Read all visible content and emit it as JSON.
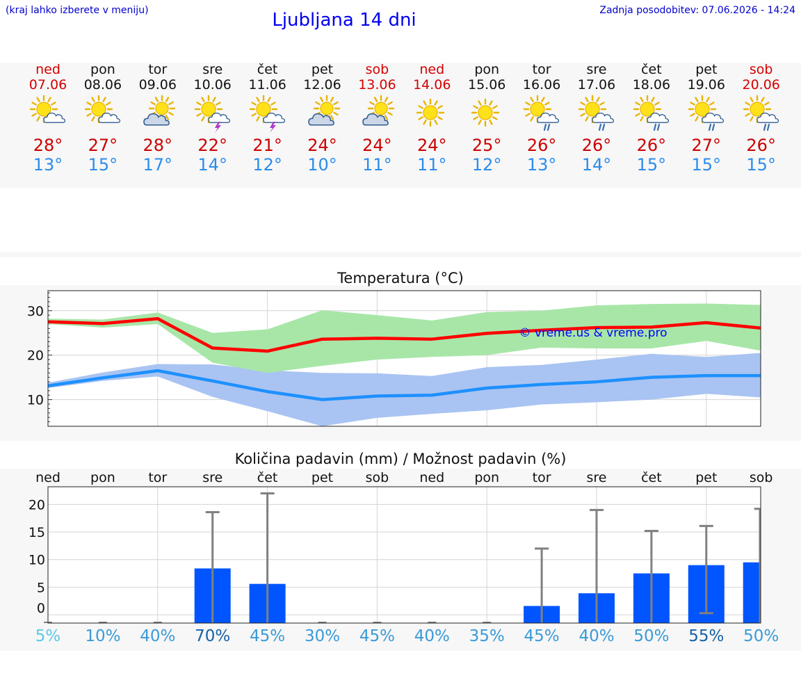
{
  "header": {
    "hint": "(kraj lahko izberete v meniju)",
    "title": "Ljubljana 14 dni",
    "updated": "Zadnja posodobitev: 07.06.2026 - 14:24"
  },
  "days": [
    {
      "name": "ned",
      "date": "07.06",
      "weekend": true,
      "icon": "sun-cloud-icon",
      "tmax": "28°",
      "tmin": "13°"
    },
    {
      "name": "pon",
      "date": "08.06",
      "weekend": false,
      "icon": "sun-cloud-icon",
      "tmax": "27°",
      "tmin": "15°"
    },
    {
      "name": "tor",
      "date": "09.06",
      "weekend": false,
      "icon": "cloud-sun-icon",
      "tmax": "28°",
      "tmin": "17°"
    },
    {
      "name": "sre",
      "date": "10.06",
      "weekend": false,
      "icon": "sun-cloud-thunder-icon",
      "tmax": "22°",
      "tmin": "14°"
    },
    {
      "name": "čet",
      "date": "11.06",
      "weekend": false,
      "icon": "sun-cloud-thunder-icon",
      "tmax": "21°",
      "tmin": "12°"
    },
    {
      "name": "pet",
      "date": "12.06",
      "weekend": false,
      "icon": "cloud-sun-icon",
      "tmax": "24°",
      "tmin": "10°"
    },
    {
      "name": "sob",
      "date": "13.06",
      "weekend": true,
      "icon": "cloud-sun-icon",
      "tmax": "24°",
      "tmin": "11°"
    },
    {
      "name": "ned",
      "date": "14.06",
      "weekend": true,
      "icon": "sun-icon",
      "tmax": "24°",
      "tmin": "11°"
    },
    {
      "name": "pon",
      "date": "15.06",
      "weekend": false,
      "icon": "sun-icon",
      "tmax": "25°",
      "tmin": "12°"
    },
    {
      "name": "tor",
      "date": "16.06",
      "weekend": false,
      "icon": "sun-cloud-rain-icon",
      "tmax": "26°",
      "tmin": "13°"
    },
    {
      "name": "sre",
      "date": "17.06",
      "weekend": false,
      "icon": "sun-cloud-rain-icon",
      "tmax": "26°",
      "tmin": "14°"
    },
    {
      "name": "čet",
      "date": "18.06",
      "weekend": false,
      "icon": "sun-cloud-rain-icon",
      "tmax": "26°",
      "tmin": "15°"
    },
    {
      "name": "pet",
      "date": "19.06",
      "weekend": false,
      "icon": "sun-cloud-rain-icon",
      "tmax": "27°",
      "tmin": "15°"
    },
    {
      "name": "sob",
      "date": "20.06",
      "weekend": true,
      "icon": "sun-cloud-rain-icon",
      "tmax": "26°",
      "tmin": "15°"
    }
  ],
  "colors": {
    "weekend": "#d40000",
    "tmax": "#cc0000",
    "tmin": "#2a8cec",
    "max_line": "#ff0000",
    "min_line": "#1e90ff",
    "max_band": "#a8e6a8",
    "min_band": "#a9c4f2",
    "precip_bar": "#0055ff",
    "error_bar": "#808080",
    "watermark": "#0000ff"
  },
  "chart_data": [
    {
      "type": "line",
      "title": "Temperatura (°C)",
      "watermark": "© vreme.us & vreme.pro",
      "xlabel": "",
      "ylabel": "",
      "x": [
        "07.06",
        "08.06",
        "09.06",
        "10.06",
        "11.06",
        "12.06",
        "13.06",
        "14.06",
        "15.06",
        "16.06",
        "17.06",
        "18.06",
        "19.06",
        "20.06"
      ],
      "ylim": [
        4,
        34.5
      ],
      "yticks": [
        10,
        20,
        30
      ],
      "grid": true,
      "series": [
        {
          "role": "max",
          "values": [
            27.5,
            27.1,
            28.2,
            21.6,
            20.9,
            23.6,
            23.8,
            23.6,
            24.9,
            25.6,
            26.2,
            26.3,
            27.3,
            26.1
          ]
        },
        {
          "role": "min",
          "values": [
            13.1,
            14.9,
            16.5,
            14.2,
            11.8,
            10.0,
            10.8,
            11.0,
            12.6,
            13.4,
            14.0,
            15.0,
            15.4,
            15.4
          ]
        },
        {
          "role": "max_range",
          "low": [
            27.0,
            26.2,
            27.0,
            18.3,
            16.0,
            17.6,
            19.0,
            19.6,
            20.0,
            21.7,
            21.5,
            21.5,
            23.2,
            21.0
          ],
          "high": [
            28.2,
            28.0,
            29.6,
            25.0,
            25.8,
            30.1,
            29.0,
            27.8,
            29.7,
            30.0,
            31.2,
            31.5,
            31.6,
            31.3
          ]
        },
        {
          "role": "min_range",
          "low": [
            12.6,
            14.2,
            15.2,
            10.6,
            7.4,
            4.0,
            5.9,
            6.8,
            7.6,
            8.9,
            9.4,
            10.0,
            11.3,
            10.5
          ],
          "high": [
            13.8,
            16.1,
            18.0,
            17.9,
            16.6,
            16.0,
            15.9,
            15.3,
            17.3,
            17.8,
            19.0,
            20.3,
            19.6,
            20.5
          ]
        }
      ]
    },
    {
      "type": "bar",
      "title": "Količina padavin (mm) / Možnost padavin (%)",
      "xlabel": "",
      "ylabel": "",
      "categories": [
        "ned",
        "pon",
        "tor",
        "sre",
        "čet",
        "pet",
        "sob",
        "ned",
        "pon",
        "tor",
        "sre",
        "čet",
        "pet",
        "sob"
      ],
      "yticks": [
        0,
        5,
        10,
        15,
        20
      ],
      "ylim": [
        -1.5,
        23.2
      ],
      "grid": true,
      "values": [
        0,
        0,
        0,
        8.4,
        5.6,
        0,
        0,
        0,
        0,
        1.6,
        3.9,
        7.5,
        9.0,
        9.5
      ],
      "error_high": [
        0,
        0,
        0,
        18.6,
        22.0,
        0,
        0,
        0,
        0,
        12.0,
        19.0,
        15.2,
        16.1,
        19.2
      ],
      "error_low": [
        0,
        0,
        0,
        0,
        0,
        0,
        0,
        0,
        0,
        0,
        0,
        0,
        0.3,
        0
      ],
      "probability": [
        "5%",
        "10%",
        "40%",
        "70%",
        "45%",
        "30%",
        "45%",
        "40%",
        "35%",
        "45%",
        "40%",
        "50%",
        "55%",
        "50%"
      ],
      "probability_colors": [
        "#5bc8e8",
        "#3a9ad8",
        "#3a9ad8",
        "#1561a8",
        "#3a9ad8",
        "#3a9ad8",
        "#3a9ad8",
        "#3a9ad8",
        "#3a9ad8",
        "#3a9ad8",
        "#3a9ad8",
        "#3a9ad8",
        "#1561a8",
        "#3a9ad8"
      ]
    }
  ]
}
